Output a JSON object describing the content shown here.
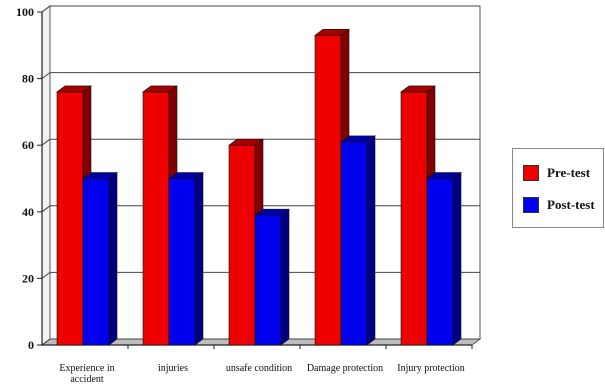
{
  "chart_data": {
    "type": "bar",
    "title": "",
    "xlabel": "",
    "ylabel": "",
    "ylim": [
      0,
      100
    ],
    "yticks": [
      0,
      20,
      40,
      60,
      80,
      100
    ],
    "grid": true,
    "legend_position": "right",
    "categories": [
      "Experience in accident",
      "injuries",
      "unsafe condition",
      "Damage protection",
      "Injury protection"
    ],
    "category_lines": [
      [
        "Experience in",
        "accident"
      ],
      [
        "injuries"
      ],
      [
        "unsafe condition"
      ],
      [
        "Damage protection"
      ],
      [
        "Injury protection"
      ]
    ],
    "series": [
      {
        "name": "Pre-test",
        "color": "#ee0000",
        "values": [
          76,
          76,
          60,
          93,
          76
        ]
      },
      {
        "name": "Post-test",
        "color": "#0000ee",
        "values": [
          50,
          50,
          39,
          61,
          50
        ]
      }
    ]
  }
}
